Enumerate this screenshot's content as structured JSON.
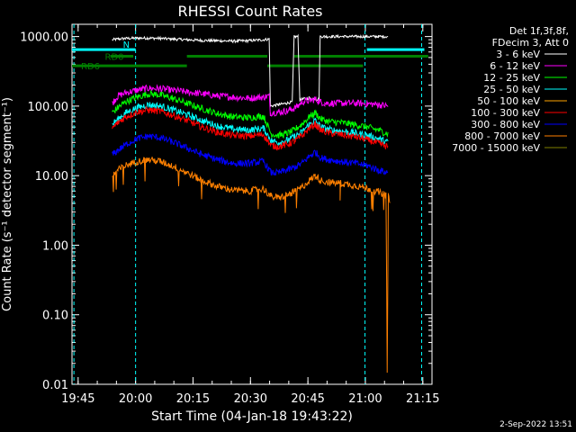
{
  "chart_data": {
    "type": "line",
    "title": "RHESSI Count Rates",
    "xlabel": "Start Time (04-Jan-18 19:43:22)",
    "ylabel": "Count Rate (s⁻¹ detector segment⁻¹)",
    "yscale": "log",
    "ylim": [
      0.01,
      1500
    ],
    "xlim_minutes": [
      0,
      94
    ],
    "x_ticks": [
      {
        "label": "19:45",
        "minute": 1.6
      },
      {
        "label": "20:00",
        "minute": 16.6
      },
      {
        "label": "20:15",
        "minute": 31.6
      },
      {
        "label": "20:30",
        "minute": 46.6
      },
      {
        "label": "20:45",
        "minute": 61.6
      },
      {
        "label": "21:00",
        "minute": 76.6
      },
      {
        "label": "21:15",
        "minute": 91.6
      }
    ],
    "y_ticks": [
      "1000.00",
      "100.00",
      "10.00",
      "1.00",
      "0.10",
      "0.01"
    ],
    "legend_header": [
      "Det 1f,3f,8f,",
      "FDecim 3, Att 0"
    ],
    "legend_position": "top-right",
    "series": [
      {
        "name": "3 - 6 keV",
        "color": "#ffffff",
        "x": [
          10.5,
          12,
          14,
          17,
          20,
          23,
          26,
          30,
          34,
          38,
          42,
          46,
          50,
          51.5,
          51.8,
          54,
          56,
          57.5,
          58,
          58.5,
          59,
          59.5,
          59.8,
          62,
          64.5,
          64.8,
          66,
          68,
          71,
          74,
          77,
          80,
          82.5,
          82.8,
          90,
          94
        ],
        "y": [
          900,
          920,
          940,
          950,
          950,
          940,
          920,
          900,
          880,
          870,
          860,
          870,
          900,
          920,
          100,
          105,
          110,
          115,
          1000,
          1000,
          1000,
          120,
          125,
          130,
          125,
          1000,
          1000,
          1000,
          1000,
          1000,
          1000,
          1000,
          1000,
          null,
          null,
          null
        ]
      },
      {
        "name": "6 - 12 keV",
        "color": "#ff00ff",
        "x": [
          10.5,
          12,
          14,
          17,
          20,
          23,
          26,
          30,
          34,
          38,
          42,
          46,
          50,
          51.5,
          51.8,
          54,
          56,
          57.5,
          59,
          60,
          62,
          63.5,
          65,
          66,
          68,
          71,
          74,
          77,
          80,
          82.5
        ],
        "y": [
          110,
          140,
          155,
          170,
          180,
          178,
          170,
          160,
          150,
          140,
          135,
          130,
          135,
          140,
          80,
          82,
          85,
          90,
          100,
          115,
          120,
          125,
          115,
          110,
          110,
          110,
          110,
          108,
          105,
          100
        ]
      },
      {
        "name": "12 - 25 keV",
        "color": "#00ff00",
        "x": [
          10.5,
          12,
          14,
          17,
          20,
          23,
          26,
          30,
          34,
          38,
          42,
          46,
          50,
          52,
          54,
          56,
          58,
          60,
          62,
          63.5,
          65,
          67,
          70,
          74,
          77,
          80,
          82.5
        ],
        "y": [
          80,
          95,
          115,
          135,
          150,
          145,
          130,
          110,
          92,
          78,
          70,
          68,
          72,
          40,
          38,
          40,
          45,
          55,
          70,
          80,
          65,
          60,
          58,
          54,
          50,
          45,
          40
        ]
      },
      {
        "name": "25 - 50 keV",
        "color": "#00ffff",
        "x": [
          10.5,
          12,
          14,
          17,
          20,
          23,
          26,
          30,
          34,
          38,
          42,
          46,
          50,
          52,
          54,
          56,
          58,
          60,
          62,
          63.5,
          65,
          67,
          70,
          74,
          77,
          80,
          82.5
        ],
        "y": [
          55,
          65,
          80,
          95,
          105,
          100,
          90,
          75,
          62,
          52,
          47,
          45,
          48,
          32,
          30,
          32,
          36,
          42,
          55,
          62,
          50,
          46,
          44,
          41,
          38,
          34,
          30
        ]
      },
      {
        "name": "50 - 100 keV",
        "color": "#ffa500",
        "x": [],
        "y": []
      },
      {
        "name": "100 - 300 keV",
        "color": "#ff0000",
        "x": [
          10.5,
          12,
          14,
          17,
          20,
          23,
          26,
          30,
          34,
          38,
          42,
          46,
          50,
          52,
          54,
          56,
          58,
          60,
          62,
          63.5,
          65,
          67,
          70,
          74,
          77,
          80,
          82.5
        ],
        "y": [
          48,
          58,
          70,
          82,
          88,
          84,
          75,
          62,
          50,
          42,
          38,
          37,
          39,
          27,
          26,
          28,
          31,
          37,
          48,
          55,
          45,
          41,
          39,
          36,
          33,
          29,
          26
        ]
      },
      {
        "name": "300 - 800 keV",
        "color": "#0000ff",
        "x": [
          10.5,
          12,
          14,
          17,
          20,
          23,
          26,
          30,
          34,
          38,
          42,
          46,
          50,
          52,
          54,
          56,
          58,
          60,
          62,
          63.5,
          65,
          67,
          70,
          74,
          77,
          80,
          82.5
        ],
        "y": [
          20,
          23,
          28,
          34,
          37,
          35,
          31,
          25,
          20,
          17,
          15,
          15,
          16,
          11,
          11,
          12,
          13,
          15,
          19,
          22,
          18,
          17,
          16,
          15,
          14,
          12,
          11
        ]
      },
      {
        "name": "800 - 7000 keV",
        "color": "#ff8000",
        "x": [
          10.5,
          12,
          14,
          17,
          20,
          23,
          26,
          30,
          34,
          38,
          42,
          46,
          50,
          52,
          54,
          56,
          58,
          60,
          62,
          63.5,
          65,
          67,
          70,
          74,
          77,
          80,
          82,
          82.3,
          82.6,
          83
        ],
        "y": [
          10,
          12,
          14,
          16,
          17,
          16,
          14,
          11,
          8.5,
          7,
          6.2,
          6,
          6.5,
          5,
          4.8,
          5.2,
          5.8,
          6.8,
          8.5,
          10,
          8.5,
          8,
          7.8,
          7.2,
          6.6,
          5.8,
          5.2,
          0.015,
          5,
          4.5
        ]
      },
      {
        "name": "7000 - 15000 keV",
        "color": "#808000",
        "x": [],
        "y": []
      }
    ],
    "attenuator_states": [
      {
        "label": "N",
        "color": "#00ffff",
        "x_start": 0,
        "x_end": 16.6,
        "y": 650
      },
      {
        "label": "",
        "color": "#00ffff",
        "x_start": 77,
        "x_end": 92,
        "y": 650
      }
    ],
    "decimation_bars": [
      {
        "label": "RD0",
        "color": "#008000",
        "x_start": 10,
        "x_end": 16,
        "y": 520
      },
      {
        "label": "",
        "color": "#008000",
        "x_start": 30,
        "x_end": 51,
        "y": 520
      },
      {
        "label": "",
        "color": "#008000",
        "x_start": 58,
        "x_end": 93,
        "y": 520
      },
      {
        "label": "RD6",
        "color": "#008000",
        "x_start": 0,
        "x_end": 30,
        "y": 380
      },
      {
        "label": "",
        "color": "#008000",
        "x_start": 51,
        "x_end": 76,
        "y": 380
      }
    ],
    "vertical_dashed_lines": [
      {
        "color": "#00ffff",
        "x": 0.5
      },
      {
        "color": "#00ffff",
        "x": 16.6
      },
      {
        "color": "#00ffff",
        "x": 76.5
      },
      {
        "color": "#00ffff",
        "x": 91.3
      }
    ],
    "footer_timestamp": "2-Sep-2022 13:51"
  }
}
